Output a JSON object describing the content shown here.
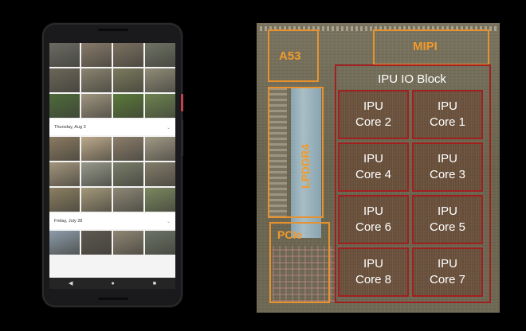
{
  "phone": {
    "date_labels": [
      "Thursday, Aug 3",
      "Friday, July 28"
    ],
    "thumb_colors_rows": [
      [
        "#6b6b63",
        "#877a6a",
        "#7b7060",
        "#6e7263"
      ],
      [
        "#6b6659",
        "#8a8470",
        "#7b7a5e",
        "#908c78"
      ],
      [
        "#4e6b3b",
        "#a09580",
        "#5b7a3a",
        "#6d8450"
      ],
      [
        "#8b7b62",
        "#bda98b",
        "#8c7e6b",
        "#a19a86"
      ],
      [
        "#a3957c",
        "#96998a",
        "#7a7d6a",
        "#837c6a"
      ],
      [
        "#8c7f62",
        "#a4987a",
        "#8d8776",
        "#7c8860"
      ],
      [
        "#8d9ba8",
        "#5e5950",
        "#8f8574",
        "#6c7365"
      ]
    ],
    "nav_icons": [
      "back-icon",
      "home-icon",
      "recents-icon"
    ]
  },
  "die": {
    "labels": {
      "a53": "A53",
      "mipi": "MIPI",
      "lpddr4": "LPDDR4",
      "pcie": "PCIe",
      "ipu_io": "IPU IO Block"
    },
    "cores": [
      {
        "line1": "IPU",
        "line2": "Core 2"
      },
      {
        "line1": "IPU",
        "line2": "Core 1"
      },
      {
        "line1": "IPU",
        "line2": "Core 4"
      },
      {
        "line1": "IPU",
        "line2": "Core 3"
      },
      {
        "line1": "IPU",
        "line2": "Core 6"
      },
      {
        "line1": "IPU",
        "line2": "Core 5"
      },
      {
        "line1": "IPU",
        "line2": "Core 8"
      },
      {
        "line1": "IPU",
        "line2": "Core 7"
      }
    ],
    "colors": {
      "label_orange": "#f19a2c",
      "ipu_border": "#a11f1f"
    }
  }
}
